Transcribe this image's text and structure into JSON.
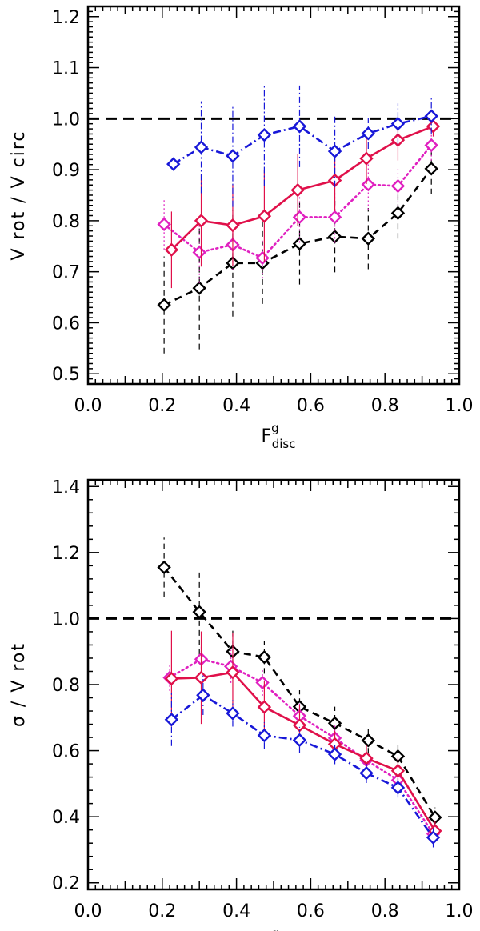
{
  "chart_data": [
    {
      "type": "line",
      "xlabel": {
        "main": "F",
        "sup": "g",
        "sub": "disc"
      },
      "ylabel": "V rot / V circ",
      "xlim": [
        0.0,
        1.0
      ],
      "ylim": [
        0.48,
        1.22
      ],
      "x_ticks": [
        "0.0",
        "0.2",
        "0.4",
        "0.6",
        "0.8",
        "1.0"
      ],
      "y_ticks": [
        "0.5",
        "0.6",
        "0.7",
        "0.8",
        "0.9",
        "1.0",
        "1.1",
        "1.2"
      ],
      "reference_line": 1.0,
      "series": [
        {
          "name": "black",
          "color": "#000000",
          "style": "dashed",
          "x": [
            0.205,
            0.3,
            0.39,
            0.47,
            0.57,
            0.665,
            0.755,
            0.835,
            0.925
          ],
          "y": [
            0.635,
            0.668,
            0.717,
            0.717,
            0.755,
            0.769,
            0.765,
            0.815,
            0.902
          ],
          "err": [
            0.095,
            0.12,
            0.105,
            0.08,
            0.08,
            0.07,
            0.06,
            0.05,
            0.05
          ]
        },
        {
          "name": "magenta",
          "color": "#e020c0",
          "style": "dotted",
          "x": [
            0.205,
            0.3,
            0.39,
            0.47,
            0.57,
            0.665,
            0.755,
            0.835,
            0.925
          ],
          "y": [
            0.793,
            0.738,
            0.753,
            0.727,
            0.807,
            0.807,
            0.871,
            0.868,
            0.948
          ],
          "err": [
            0.05,
            0.06,
            0.05,
            0.04,
            0.05,
            0.05,
            0.05,
            0.04,
            0.03
          ]
        },
        {
          "name": "red",
          "color": "#e0104a",
          "style": "solid",
          "x": [
            0.225,
            0.305,
            0.39,
            0.475,
            0.565,
            0.665,
            0.75,
            0.835,
            0.93
          ],
          "y": [
            0.743,
            0.8,
            0.791,
            0.809,
            0.86,
            0.879,
            0.922,
            0.958,
            0.985
          ],
          "err": [
            0.075,
            0.09,
            0.08,
            0.09,
            0.07,
            0.06,
            0.05,
            0.04,
            0.02
          ]
        },
        {
          "name": "blue",
          "color": "#1818d8",
          "style": "dashdot",
          "x": [
            0.23,
            0.305,
            0.39,
            0.475,
            0.57,
            0.665,
            0.755,
            0.835,
            0.925
          ],
          "y": [
            0.911,
            0.944,
            0.927,
            0.968,
            0.985,
            0.936,
            0.971,
            0.99,
            1.005
          ],
          "err": [
            0.0,
            0.09,
            0.1,
            0.1,
            0.08,
            0.07,
            0.03,
            0.04,
            0.035
          ]
        }
      ]
    },
    {
      "type": "line",
      "xlabel": {
        "main": "F",
        "sup": "g",
        "sub": "disc"
      },
      "ylabel": "σ / V rot",
      "xlim": [
        0.0,
        1.0
      ],
      "ylim": [
        0.18,
        1.42
      ],
      "x_ticks": [
        "0.0",
        "0.2",
        "0.4",
        "0.6",
        "0.8",
        "1.0"
      ],
      "y_ticks": [
        "0.2",
        "0.4",
        "0.6",
        "0.8",
        "1.0",
        "1.2",
        "1.4"
      ],
      "reference_line": 1.0,
      "series": [
        {
          "name": "black",
          "color": "#000000",
          "style": "dashed",
          "x": [
            0.205,
            0.3,
            0.39,
            0.475,
            0.57,
            0.665,
            0.755,
            0.835,
            0.935
          ],
          "y": [
            1.155,
            1.02,
            0.9,
            0.883,
            0.733,
            0.683,
            0.631,
            0.583,
            0.398
          ],
          "err": [
            0.09,
            0.13,
            0.07,
            0.05,
            0.05,
            0.05,
            0.04,
            0.04,
            0.03
          ]
        },
        {
          "name": "magenta",
          "color": "#e020c0",
          "style": "dotted",
          "x": [
            0.22,
            0.305,
            0.385,
            0.47,
            0.57,
            0.665,
            0.75,
            0.835,
            0.93
          ],
          "y": [
            0.821,
            0.877,
            0.855,
            0.806,
            0.705,
            0.638,
            0.571,
            0.511,
            0.348
          ],
          "err": [
            0.04,
            0.04,
            0.05,
            0.04,
            0.04,
            0.04,
            0.03,
            0.03,
            0.03
          ]
        },
        {
          "name": "red",
          "color": "#e0104a",
          "style": "solid",
          "x": [
            0.225,
            0.305,
            0.39,
            0.475,
            0.57,
            0.665,
            0.75,
            0.835,
            0.935
          ],
          "y": [
            0.818,
            0.821,
            0.837,
            0.732,
            0.677,
            0.62,
            0.577,
            0.539,
            0.357
          ],
          "err": [
            0.145,
            0.14,
            0.12,
            0.08,
            0.06,
            0.04,
            0.04,
            0.04,
            0.03
          ]
        },
        {
          "name": "blue",
          "color": "#1818d8",
          "style": "dashdot",
          "x": [
            0.225,
            0.31,
            0.39,
            0.475,
            0.57,
            0.665,
            0.75,
            0.835,
            0.93
          ],
          "y": [
            0.694,
            0.768,
            0.713,
            0.646,
            0.632,
            0.589,
            0.532,
            0.488,
            0.337
          ],
          "err": [
            0.08,
            0.06,
            0.04,
            0.04,
            0.04,
            0.03,
            0.03,
            0.03,
            0.03
          ]
        }
      ]
    }
  ]
}
